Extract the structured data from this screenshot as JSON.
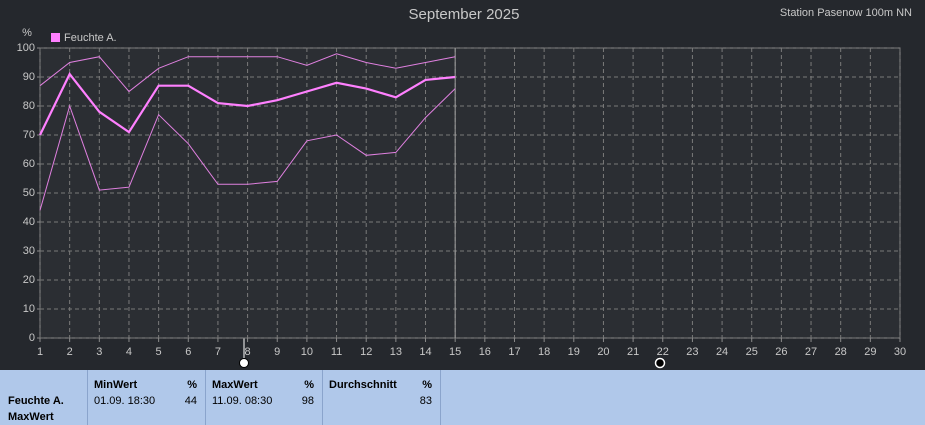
{
  "chart_data": {
    "type": "line",
    "title": "September 2025",
    "station": "Station Pasenow 100m NN",
    "y_label": "%",
    "x": [
      1,
      2,
      3,
      4,
      5,
      6,
      7,
      8,
      9,
      10,
      11,
      12,
      13,
      14,
      15
    ],
    "series": [
      {
        "name": "Feuchte A.",
        "color": "#ff80ff",
        "width": 2.2,
        "values": [
          70,
          91,
          78,
          71,
          87,
          87,
          81,
          80,
          82,
          85,
          88,
          86,
          83,
          89,
          90
        ]
      },
      {
        "color": "#e080e0",
        "width": 1,
        "values": [
          87,
          95,
          97,
          85,
          93,
          97,
          97,
          97,
          97,
          94,
          98,
          95,
          93,
          95,
          97
        ]
      },
      {
        "color": "#e080e0",
        "width": 1,
        "values": [
          44,
          80,
          51,
          52,
          77,
          67,
          53,
          53,
          54,
          68,
          70,
          63,
          64,
          76,
          86
        ]
      }
    ],
    "xlim": [
      1,
      30
    ],
    "xticks": [
      1,
      2,
      3,
      4,
      5,
      6,
      7,
      8,
      9,
      10,
      11,
      12,
      13,
      14,
      15,
      16,
      17,
      18,
      19,
      20,
      21,
      22,
      23,
      24,
      25,
      26,
      27,
      28,
      29,
      30
    ],
    "ylim": [
      0,
      100
    ],
    "yticks": [
      0,
      10,
      20,
      30,
      40,
      50,
      60,
      70,
      80,
      90,
      100
    ],
    "grid": true
  },
  "table": {
    "row_label": [
      "Feuchte A.",
      "MaxWert"
    ],
    "columns": [
      {
        "title": "MinWert",
        "unit": "%",
        "time": "01.09. 18:30",
        "value": 44
      },
      {
        "title": "MaxWert",
        "unit": "%",
        "time": "11.09. 08:30",
        "value": 98
      },
      {
        "title": "Durchschnitt",
        "unit": "%",
        "value": 83
      }
    ]
  }
}
